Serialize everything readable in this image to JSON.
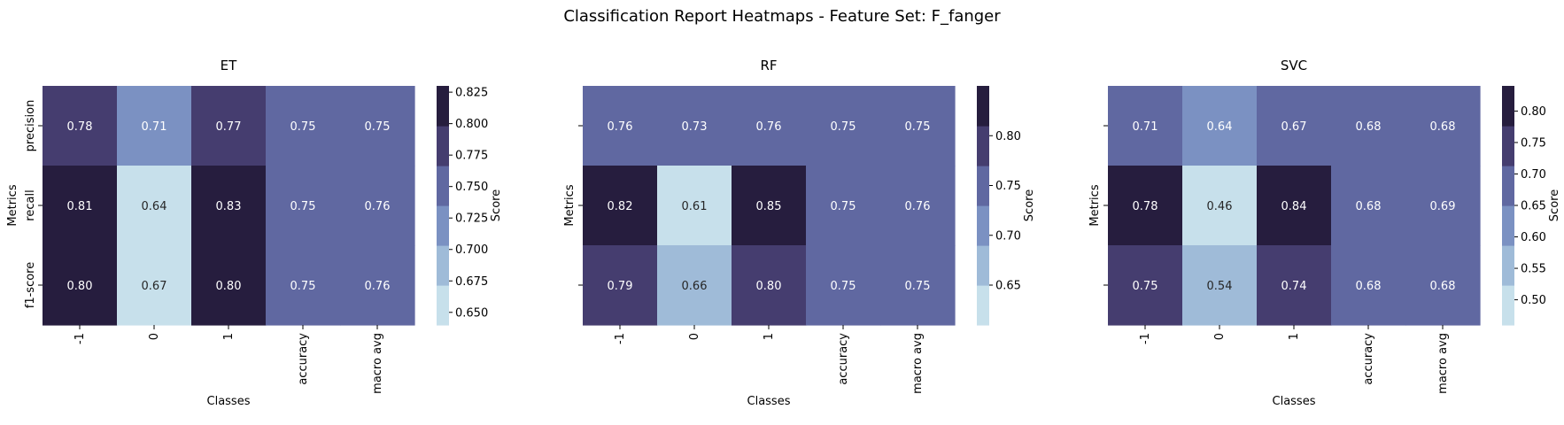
{
  "figure": {
    "title": "Classification Report Heatmaps - Feature Set: F_fanger"
  },
  "chart_data": [
    {
      "type": "heatmap",
      "title": "ET",
      "xlabel": "Classes",
      "ylabel": "Metrics",
      "x_categories": [
        "-1",
        "0",
        "1",
        "accuracy",
        "macro avg"
      ],
      "y_categories": [
        "precision",
        "recall",
        "f1-score"
      ],
      "show_y_ticklabels": true,
      "values": [
        [
          0.78,
          0.71,
          0.77,
          0.75,
          0.75
        ],
        [
          0.81,
          0.64,
          0.83,
          0.75,
          0.76
        ],
        [
          0.8,
          0.67,
          0.8,
          0.75,
          0.76
        ]
      ],
      "colorbar": {
        "label": "Score",
        "range": [
          0.64,
          0.83
        ],
        "ticks": [
          0.65,
          0.675,
          0.7,
          0.725,
          0.75,
          0.775,
          0.8,
          0.825
        ],
        "tick_labels": [
          "0.650",
          "0.675",
          "0.700",
          "0.725",
          "0.750",
          "0.775",
          "0.800",
          "0.825"
        ]
      }
    },
    {
      "type": "heatmap",
      "title": "RF",
      "xlabel": "Classes",
      "ylabel": "Metrics",
      "x_categories": [
        "-1",
        "0",
        "1",
        "accuracy",
        "macro avg"
      ],
      "y_categories": [
        "precision",
        "recall",
        "f1-score"
      ],
      "show_y_ticklabels": false,
      "values": [
        [
          0.76,
          0.73,
          0.76,
          0.75,
          0.75
        ],
        [
          0.82,
          0.61,
          0.85,
          0.75,
          0.76
        ],
        [
          0.79,
          0.66,
          0.8,
          0.75,
          0.75
        ]
      ],
      "colorbar": {
        "label": "Score",
        "range": [
          0.61,
          0.85
        ],
        "ticks": [
          0.65,
          0.7,
          0.75,
          0.8
        ],
        "tick_labels": [
          "0.65",
          "0.70",
          "0.75",
          "0.80"
        ]
      }
    },
    {
      "type": "heatmap",
      "title": "SVC",
      "xlabel": "Classes",
      "ylabel": "Metrics",
      "x_categories": [
        "-1",
        "0",
        "1",
        "accuracy",
        "macro avg"
      ],
      "y_categories": [
        "precision",
        "recall",
        "f1-score"
      ],
      "show_y_ticklabels": false,
      "values": [
        [
          0.71,
          0.64,
          0.67,
          0.68,
          0.68
        ],
        [
          0.78,
          0.46,
          0.84,
          0.68,
          0.69
        ],
        [
          0.75,
          0.54,
          0.74,
          0.68,
          0.68
        ]
      ],
      "colorbar": {
        "label": "Score",
        "range": [
          0.46,
          0.84
        ],
        "ticks": [
          0.5,
          0.55,
          0.6,
          0.65,
          0.7,
          0.75,
          0.8
        ],
        "tick_labels": [
          "0.50",
          "0.55",
          "0.60",
          "0.65",
          "0.70",
          "0.75",
          "0.80"
        ]
      }
    }
  ],
  "colormap": [
    "#c7e0eb",
    "#9fbbd8",
    "#7b91c2",
    "#6068a1",
    "#453d6f",
    "#261d3e"
  ]
}
